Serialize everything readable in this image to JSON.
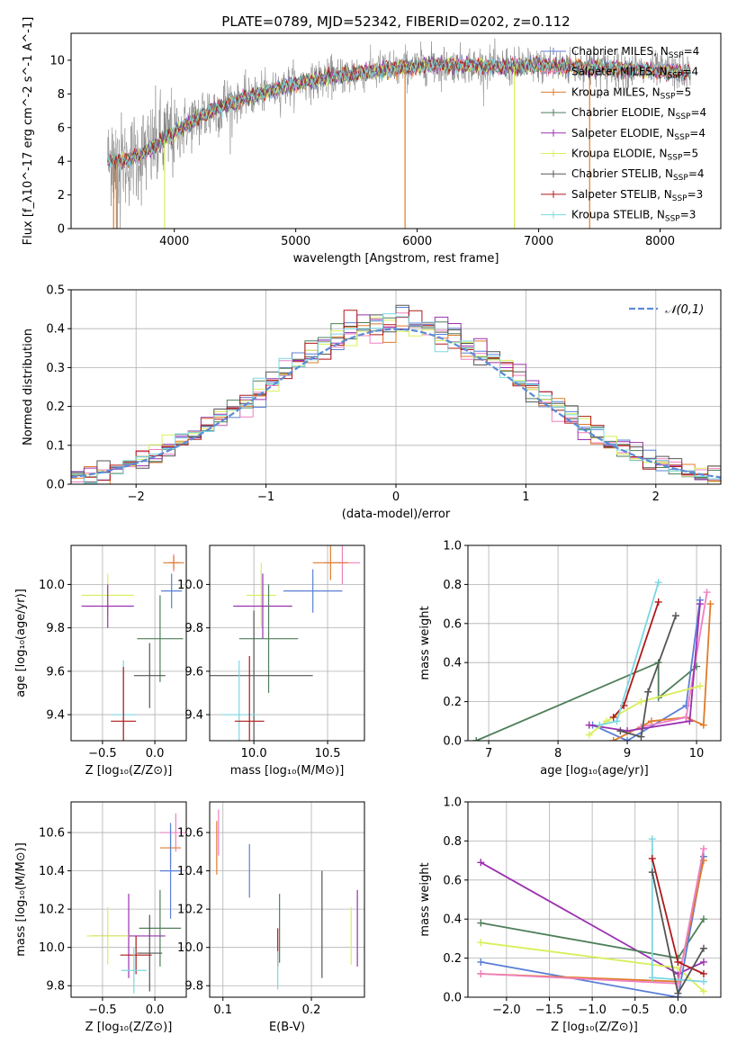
{
  "title": "PLATE=0789, MJD=52342, FIBERID=0202, z=0.112",
  "colors": {
    "chab_miles": "#5b7fd6",
    "salp_miles": "#f080c0",
    "krou_miles": "#e07b2a",
    "chab_elodie": "#4f7f5a",
    "salp_elodie": "#9b30b0",
    "krou_elodie": "#d8ef5a",
    "chab_stelib": "#555555",
    "salp_stelib": "#b01818",
    "krou_stelib": "#7ad8e0",
    "data_gray": "#808080",
    "gauss": "#5b8bd6"
  },
  "chart_data": [
    {
      "id": "spectrum",
      "type": "line",
      "xlabel": "wavelength [Angstrom, rest frame]",
      "ylabel": "Flux [f_λ10^-17 erg cm^-2 s^-1 A^-1]",
      "xlim": [
        3150,
        8500
      ],
      "ylim": [
        0,
        11.6
      ],
      "xticks": [
        "4000",
        "5000",
        "6000",
        "7000",
        "8000"
      ],
      "yticks": [
        "0",
        "2",
        "4",
        "6",
        "8",
        "10"
      ],
      "legend_position": "right",
      "legend": [
        {
          "prefix": "Chabrier MILES, N",
          "sub": "SSP",
          "suffix": "=4",
          "color": "#5b7fd6"
        },
        {
          "prefix": "Salpeter MILES, N",
          "sub": "SSP",
          "suffix": "=4",
          "color": "#f080c0"
        },
        {
          "prefix": "Kroupa MILES, N",
          "sub": "SSP",
          "suffix": "=5",
          "color": "#e07b2a"
        },
        {
          "prefix": "Chabrier ELODIE, N",
          "sub": "SSP",
          "suffix": "=4",
          "color": "#4f7f5a"
        },
        {
          "prefix": "Salpeter ELODIE, N",
          "sub": "SSP",
          "suffix": "=4",
          "color": "#9b30b0"
        },
        {
          "prefix": "Kroupa ELODIE, N",
          "sub": "SSP",
          "suffix": "=5",
          "color": "#d8ef5a"
        },
        {
          "prefix": "Chabrier STELIB, N",
          "sub": "SSP",
          "suffix": "=4",
          "color": "#555555"
        },
        {
          "prefix": "Salpeter STELIB, N",
          "sub": "SSP",
          "suffix": "=3",
          "color": "#b01818"
        },
        {
          "prefix": "Kroupa STELIB, N",
          "sub": "SSP",
          "suffix": "=3",
          "color": "#7ad8e0"
        }
      ],
      "continuum": {
        "x": [
          3450,
          3600,
          3800,
          4000,
          4200,
          4400,
          4600,
          4800,
          5000,
          5200,
          5500,
          5800,
          6100,
          6400,
          6700,
          7000,
          7300,
          7600,
          7900,
          8250
        ],
        "y": [
          4.1,
          4.0,
          4.7,
          5.7,
          6.6,
          7.3,
          7.8,
          8.2,
          8.6,
          8.9,
          9.2,
          9.5,
          9.7,
          9.7,
          9.6,
          9.7,
          9.6,
          9.5,
          9.4,
          9.2
        ]
      }
    },
    {
      "id": "residuals",
      "type": "bar",
      "xlabel": "(data-model)/error",
      "ylabel": "Normed distribution",
      "xlim": [
        -2.5,
        2.5
      ],
      "ylim": [
        0,
        0.5
      ],
      "xticks": [
        "−2",
        "−1",
        "0",
        "1",
        "2"
      ],
      "yticks": [
        "0.0",
        "0.1",
        "0.2",
        "0.3",
        "0.4",
        "0.5"
      ],
      "gaussian_label": "𝒩(0,1)",
      "bins": 50
    },
    {
      "id": "age_vs_Z",
      "type": "scatter",
      "xlabel": "Z [log₁₀(Z/Z⊙)]",
      "ylabel": "age [log₁₀(age/yr)]",
      "xlim": [
        -0.8,
        0.3
      ],
      "ylim": [
        9.28,
        10.18
      ],
      "xticks": [
        "−0.5",
        "0.0"
      ],
      "yticks": [
        "9.4",
        "9.6",
        "9.8",
        "10.0"
      ],
      "points": [
        {
          "m": "salp_miles",
          "x": 0.18,
          "y": 10.1,
          "xe": 0.05,
          "ye": 0.04
        },
        {
          "m": "krou_miles",
          "x": 0.18,
          "y": 10.1,
          "xe": 0.1,
          "ye": 0.03
        },
        {
          "m": "chab_miles",
          "x": 0.16,
          "y": 9.97,
          "xe": 0.1,
          "ye": 0.08
        },
        {
          "m": "krou_elodie",
          "x": -0.45,
          "y": 9.95,
          "xe": 0.25,
          "ye": 0.1
        },
        {
          "m": "salp_elodie",
          "x": -0.45,
          "y": 9.9,
          "xe": 0.25,
          "ye": 0.1
        },
        {
          "m": "chab_elodie",
          "x": 0.05,
          "y": 9.75,
          "xe": 0.22,
          "ye": 0.2
        },
        {
          "m": "chab_stelib",
          "x": -0.05,
          "y": 9.58,
          "xe": 0.15,
          "ye": 0.15
        },
        {
          "m": "krou_stelib",
          "x": -0.3,
          "y": 9.4,
          "xe": 0.12,
          "ye": 0.25
        },
        {
          "m": "salp_stelib",
          "x": -0.3,
          "y": 9.37,
          "xe": 0.12,
          "ye": 0.25
        }
      ]
    },
    {
      "id": "age_vs_mass",
      "type": "scatter",
      "xlabel": "mass [log₁₀(M/M⊙)]",
      "ylabel": "",
      "xlim": [
        9.7,
        10.75
      ],
      "ylim": [
        9.28,
        10.18
      ],
      "xticks": [
        "10.0",
        "10.5"
      ],
      "yticks": [
        "9.4",
        "9.6",
        "9.8",
        "10.0"
      ],
      "points": [
        {
          "m": "salp_miles",
          "x": 10.6,
          "y": 10.1,
          "xe": 0.12,
          "ye": 0.1
        },
        {
          "m": "krou_miles",
          "x": 10.52,
          "y": 10.1,
          "xe": 0.12,
          "ye": 0.08
        },
        {
          "m": "chab_miles",
          "x": 10.4,
          "y": 9.97,
          "xe": 0.2,
          "ye": 0.1
        },
        {
          "m": "krou_elodie",
          "x": 10.05,
          "y": 9.95,
          "xe": 0.1,
          "ye": 0.15
        },
        {
          "m": "salp_elodie",
          "x": 10.06,
          "y": 9.9,
          "xe": 0.2,
          "ye": 0.15
        },
        {
          "m": "chab_elodie",
          "x": 10.1,
          "y": 9.75,
          "xe": 0.2,
          "ye": 0.25
        },
        {
          "m": "chab_stelib",
          "x": 10.0,
          "y": 9.58,
          "xe": 0.4,
          "ye": 0.3
        },
        {
          "m": "krou_stelib",
          "x": 9.9,
          "y": 9.4,
          "xe": 0.12,
          "ye": 0.25
        },
        {
          "m": "salp_stelib",
          "x": 9.97,
          "y": 9.37,
          "xe": 0.1,
          "ye": 0.3
        }
      ]
    },
    {
      "id": "weight_vs_age",
      "type": "line",
      "xlabel": "age [log₁₀(age/yr)]",
      "ylabel": "mass weight",
      "xlim": [
        6.7,
        10.35
      ],
      "ylim": [
        0,
        1.0
      ],
      "xticks": [
        "7",
        "8",
        "9",
        "10"
      ],
      "yticks": [
        "0.0",
        "0.2",
        "0.4",
        "0.6",
        "0.8",
        "1.0"
      ],
      "series": [
        {
          "m": "chab_elodie",
          "x": [
            6.82,
            9.45,
            9.45,
            10.0
          ],
          "y": [
            0.0,
            0.4,
            0.22,
            0.38
          ]
        },
        {
          "m": "chab_miles",
          "x": [
            8.5,
            9.0,
            9.85,
            10.05
          ],
          "y": [
            0.08,
            0.0,
            0.18,
            0.72
          ]
        },
        {
          "m": "krou_miles",
          "x": [
            8.8,
            9.35,
            9.85,
            10.1,
            10.2
          ],
          "y": [
            0.0,
            0.1,
            0.12,
            0.08,
            0.7
          ]
        },
        {
          "m": "salp_miles",
          "x": [
            9.2,
            9.85,
            10.15
          ],
          "y": [
            0.07,
            0.12,
            0.76
          ]
        },
        {
          "m": "salp_elodie",
          "x": [
            8.45,
            9.0,
            9.9,
            10.05
          ],
          "y": [
            0.08,
            0.05,
            0.1,
            0.7
          ]
        },
        {
          "m": "krou_elodie",
          "x": [
            8.45,
            8.7,
            9.2,
            10.05
          ],
          "y": [
            0.03,
            0.1,
            0.2,
            0.28
          ]
        },
        {
          "m": "chab_stelib",
          "x": [
            8.9,
            9.2,
            9.3,
            9.7
          ],
          "y": [
            0.05,
            0.02,
            0.25,
            0.64
          ]
        },
        {
          "m": "salp_stelib",
          "x": [
            8.8,
            8.95,
            9.45
          ],
          "y": [
            0.12,
            0.18,
            0.71
          ]
        },
        {
          "m": "krou_stelib",
          "x": [
            8.6,
            8.85,
            9.45
          ],
          "y": [
            0.08,
            0.1,
            0.81
          ]
        }
      ]
    },
    {
      "id": "mass_vs_Z",
      "type": "scatter",
      "xlabel": "Z [log₁₀(Z/Z⊙)]",
      "ylabel": "mass [log₁₀(M/M⊙)]",
      "xlim": [
        -0.8,
        0.3
      ],
      "ylim": [
        9.74,
        10.76
      ],
      "xticks": [
        "−0.5",
        "0.0"
      ],
      "yticks": [
        "9.8",
        "10.0",
        "10.2",
        "10.4",
        "10.6"
      ],
      "points": [
        {
          "m": "salp_miles",
          "x": 0.2,
          "y": 10.6,
          "xe": 0.15,
          "ye": 0.1
        },
        {
          "m": "krou_miles",
          "x": 0.15,
          "y": 10.52,
          "xe": 0.1,
          "ye": 0.1
        },
        {
          "m": "chab_miles",
          "x": 0.15,
          "y": 10.4,
          "xe": 0.1,
          "ye": 0.25
        },
        {
          "m": "chab_elodie",
          "x": 0.05,
          "y": 10.1,
          "xe": 0.2,
          "ye": 0.2
        },
        {
          "m": "salp_elodie",
          "x": -0.25,
          "y": 10.06,
          "xe": 0.35,
          "ye": 0.22
        },
        {
          "m": "krou_elodie",
          "x": -0.45,
          "y": 10.06,
          "xe": 0.2,
          "ye": 0.15
        },
        {
          "m": "chab_stelib",
          "x": -0.05,
          "y": 9.97,
          "xe": 0.12,
          "ye": 0.2
        },
        {
          "m": "salp_stelib",
          "x": -0.18,
          "y": 9.96,
          "xe": 0.15,
          "ye": 0.1
        },
        {
          "m": "krou_stelib",
          "x": -0.2,
          "y": 9.88,
          "xe": 0.12,
          "ye": 0.12
        }
      ]
    },
    {
      "id": "mass_vs_ebv",
      "type": "scatter",
      "xlabel": "E(B-V)",
      "ylabel": "",
      "xlim": [
        0.085,
        0.26
      ],
      "ylim": [
        9.74,
        10.76
      ],
      "xticks": [
        "0.1",
        "0.2"
      ],
      "yticks": [
        "9.8",
        "10.0",
        "10.2",
        "10.4",
        "10.6"
      ],
      "points": [
        {
          "m": "salp_miles",
          "x": 0.095,
          "y": 10.6,
          "xe": 0,
          "ye": 0.12
        },
        {
          "m": "krou_miles",
          "x": 0.093,
          "y": 10.52,
          "xe": 0,
          "ye": 0.14
        },
        {
          "m": "chab_miles",
          "x": 0.13,
          "y": 10.4,
          "xe": 0,
          "ye": 0.14
        },
        {
          "m": "salp_stelib",
          "x": 0.162,
          "y": 10.0,
          "xe": 0,
          "ye": 0.1
        },
        {
          "m": "chab_elodie",
          "x": 0.164,
          "y": 10.1,
          "xe": 0,
          "ye": 0.18
        },
        {
          "m": "krou_stelib",
          "x": 0.162,
          "y": 9.88,
          "xe": 0,
          "ye": 0.1
        },
        {
          "m": "chab_stelib",
          "x": 0.212,
          "y": 10.12,
          "xe": 0,
          "ye": 0.28
        },
        {
          "m": "krou_elodie",
          "x": 0.245,
          "y": 10.06,
          "xe": 0,
          "ye": 0.15
        },
        {
          "m": "salp_elodie",
          "x": 0.252,
          "y": 10.1,
          "xe": 0,
          "ye": 0.2
        }
      ]
    },
    {
      "id": "weight_vs_Z",
      "type": "line",
      "xlabel": "Z [log₁₀(Z/Z⊙)]",
      "ylabel": "mass weight",
      "xlim": [
        -2.45,
        0.5
      ],
      "ylim": [
        0,
        1.0
      ],
      "xticks": [
        "−2.0",
        "−1.5",
        "−1.0",
        "−0.5",
        "0.0"
      ],
      "yticks": [
        "0.0",
        "0.2",
        "0.4",
        "0.6",
        "0.8",
        "1.0"
      ],
      "series": [
        {
          "m": "salp_elodie",
          "x": [
            -2.3,
            0.0,
            0.3
          ],
          "y": [
            0.69,
            0.12,
            0.18
          ]
        },
        {
          "m": "chab_elodie",
          "x": [
            -2.3,
            0.0,
            0.3
          ],
          "y": [
            0.38,
            0.2,
            0.4
          ]
        },
        {
          "m": "krou_elodie",
          "x": [
            -2.3,
            0.0,
            0.3
          ],
          "y": [
            0.28,
            0.15,
            0.03
          ]
        },
        {
          "m": "chab_miles",
          "x": [
            -2.3,
            0.0,
            0.3
          ],
          "y": [
            0.18,
            0.0,
            0.72
          ]
        },
        {
          "m": "krou_miles",
          "x": [
            -2.3,
            0.0,
            0.3
          ],
          "y": [
            0.12,
            0.08,
            0.7
          ]
        },
        {
          "m": "salp_miles",
          "x": [
            -2.3,
            0.0,
            0.3
          ],
          "y": [
            0.12,
            0.07,
            0.76
          ]
        },
        {
          "m": "krou_stelib",
          "x": [
            -0.3,
            -0.3,
            0.3
          ],
          "y": [
            0.81,
            0.1,
            0.08
          ]
        },
        {
          "m": "salp_stelib",
          "x": [
            -0.3,
            0.0,
            0.3
          ],
          "y": [
            0.71,
            0.18,
            0.12
          ]
        },
        {
          "m": "chab_stelib",
          "x": [
            -0.3,
            0.0,
            0.3
          ],
          "y": [
            0.64,
            0.02,
            0.25
          ]
        }
      ]
    }
  ]
}
